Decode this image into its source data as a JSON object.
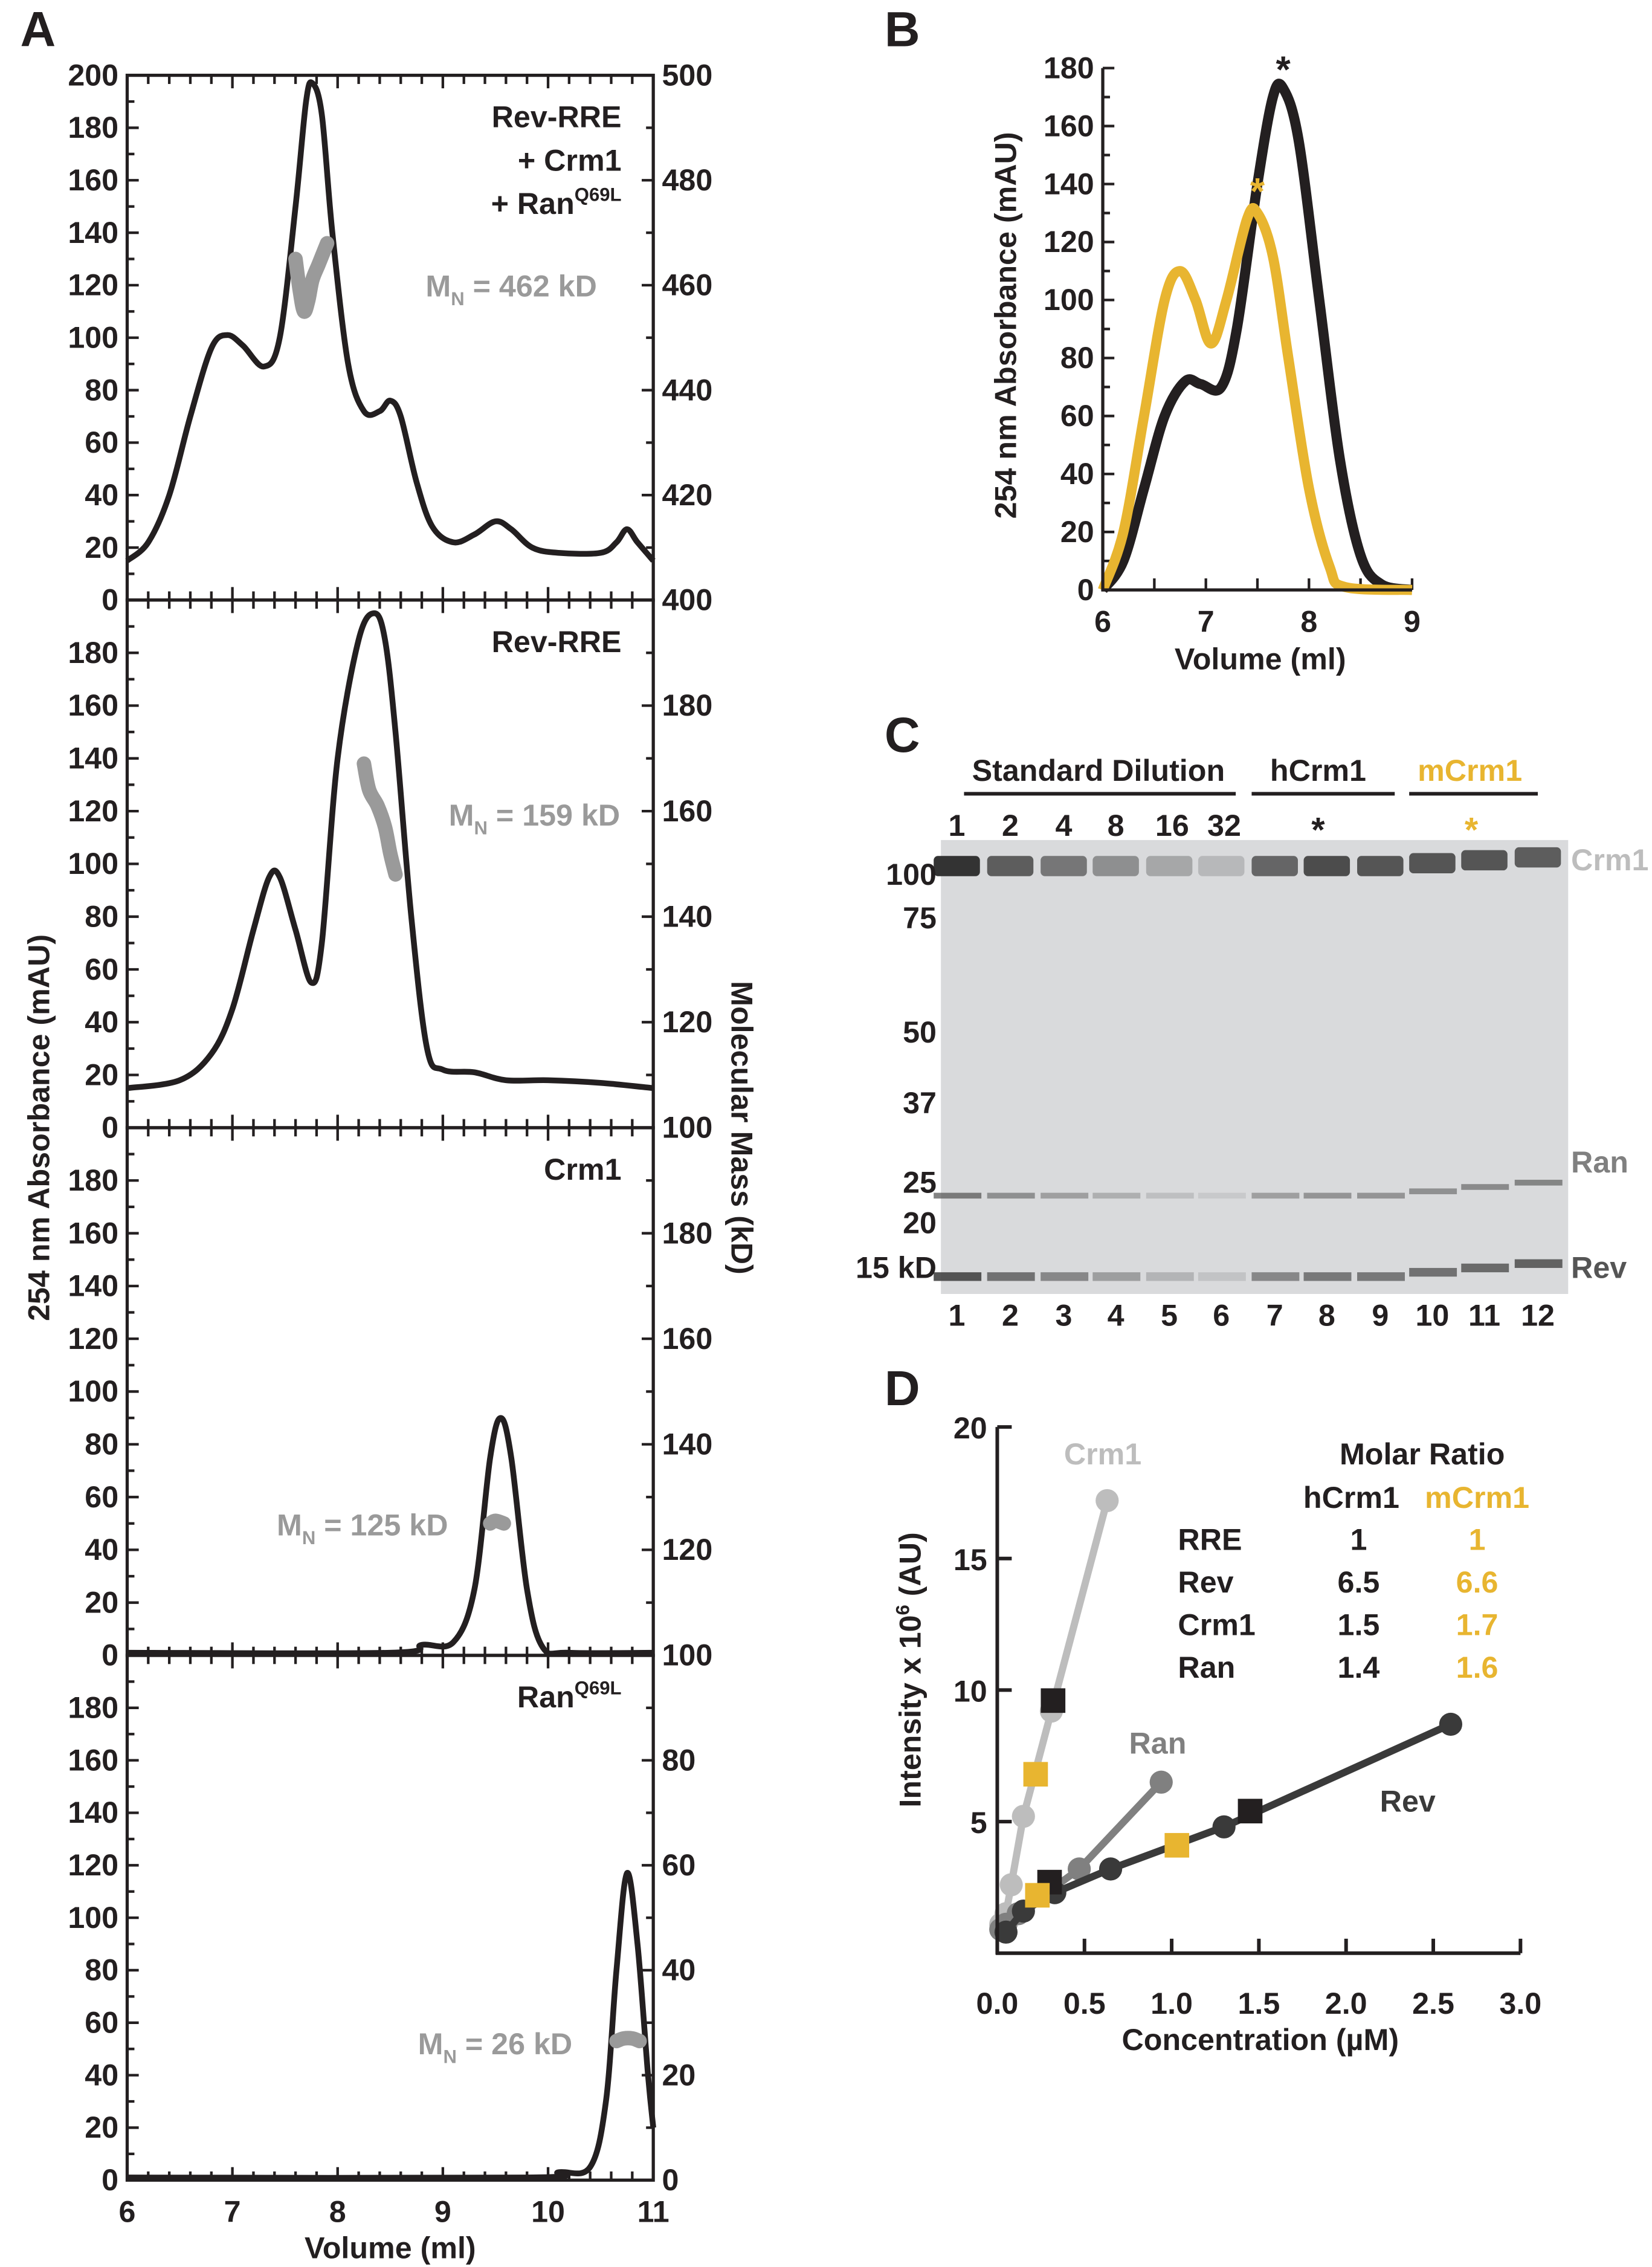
{
  "colors": {
    "black": "#231f20",
    "yellow": "#e8b530",
    "mals": "#9a9a9a",
    "crm1": "#bdbdbd",
    "ran": "#808080",
    "rev": "#3a3a3a",
    "gel": "#d9dadc"
  },
  "panels": {
    "A": "A",
    "B": "B",
    "C": "C",
    "D": "D"
  },
  "chart_data": [
    {
      "id": "A",
      "type": "line",
      "xlabel": "Volume (ml)",
      "ylabel": "254 nm Absorbance (mAU)",
      "y2label": "Molecular Mass (kD)",
      "xlim": [
        6,
        11
      ],
      "xticks": [
        "6",
        "7",
        "8",
        "9",
        "10",
        "11"
      ],
      "subplots": [
        {
          "title_lines": [
            "Rev-RRE",
            "+ Crm1",
            "+ Ran"
          ],
          "title_sup": "Q69L",
          "ylim": [
            0,
            200
          ],
          "y2lim": [
            400,
            500
          ],
          "yticks": [
            "0",
            "20",
            "40",
            "60",
            "80",
            "100",
            "120",
            "140",
            "160",
            "180",
            "200"
          ],
          "y2ticks": [
            "400",
            "420",
            "440",
            "460",
            "480",
            "500"
          ],
          "mn": {
            "prefix": "M",
            "sub": "N",
            "value": " = 462 kD"
          },
          "trace": [
            [
              6,
              15
            ],
            [
              6.2,
              22
            ],
            [
              6.4,
              40
            ],
            [
              6.6,
              70
            ],
            [
              6.8,
              96
            ],
            [
              6.95,
              101
            ],
            [
              7.1,
              97
            ],
            [
              7.3,
              89
            ],
            [
              7.45,
              100
            ],
            [
              7.6,
              150
            ],
            [
              7.7,
              190
            ],
            [
              7.76,
              197
            ],
            [
              7.85,
              185
            ],
            [
              7.95,
              140
            ],
            [
              8.1,
              90
            ],
            [
              8.25,
              72
            ],
            [
              8.4,
              72
            ],
            [
              8.5,
              76
            ],
            [
              8.6,
              70
            ],
            [
              8.75,
              45
            ],
            [
              8.9,
              28
            ],
            [
              9.1,
              22
            ],
            [
              9.3,
              25
            ],
            [
              9.5,
              30
            ],
            [
              9.65,
              27
            ],
            [
              9.85,
              20
            ],
            [
              10.1,
              18
            ],
            [
              10.5,
              18
            ],
            [
              10.65,
              22
            ],
            [
              10.75,
              27
            ],
            [
              10.85,
              22
            ],
            [
              11,
              15
            ]
          ],
          "mass": [
            [
              7.6,
              465
            ],
            [
              7.64,
              459
            ],
            [
              7.68,
              455
            ],
            [
              7.72,
              457
            ],
            [
              7.76,
              461
            ],
            [
              7.82,
              464
            ],
            [
              7.9,
              468
            ]
          ]
        },
        {
          "title_lines": [
            "Rev-RRE"
          ],
          "title_sup": "",
          "ylim": [
            0,
            200
          ],
          "y2lim": [
            100,
            200
          ],
          "yticks": [
            "0",
            "20",
            "40",
            "60",
            "80",
            "100",
            "120",
            "140",
            "160",
            "180"
          ],
          "y2ticks": [
            "100",
            "120",
            "140",
            "160",
            "180"
          ],
          "mn": {
            "prefix": "M",
            "sub": "N",
            "value": " = 159 kD"
          },
          "trace": [
            [
              6,
              15
            ],
            [
              6.5,
              18
            ],
            [
              6.8,
              28
            ],
            [
              7.0,
              45
            ],
            [
              7.2,
              75
            ],
            [
              7.35,
              95
            ],
            [
              7.45,
              95
            ],
            [
              7.6,
              75
            ],
            [
              7.75,
              55
            ],
            [
              7.85,
              70
            ],
            [
              8.0,
              140
            ],
            [
              8.2,
              185
            ],
            [
              8.35,
              195
            ],
            [
              8.45,
              185
            ],
            [
              8.55,
              150
            ],
            [
              8.7,
              80
            ],
            [
              8.85,
              30
            ],
            [
              9.0,
              22
            ],
            [
              9.3,
              21
            ],
            [
              9.6,
              18
            ],
            [
              10,
              18
            ],
            [
              10.5,
              17
            ],
            [
              11,
              15
            ]
          ],
          "mass": [
            [
              8.25,
              169
            ],
            [
              8.3,
              164
            ],
            [
              8.38,
              161
            ],
            [
              8.45,
              157
            ],
            [
              8.5,
              152
            ],
            [
              8.55,
              148
            ]
          ]
        },
        {
          "title_lines": [
            "Crm1"
          ],
          "title_sup": "",
          "ylim": [
            0,
            200
          ],
          "y2lim": [
            100,
            200
          ],
          "yticks": [
            "0",
            "20",
            "40",
            "60",
            "80",
            "100",
            "120",
            "140",
            "160",
            "180"
          ],
          "y2ticks": [
            "100",
            "120",
            "140",
            "160",
            "180"
          ],
          "mn": {
            "prefix": "M",
            "sub": "N",
            "value": " = 125 kD"
          },
          "trace": [
            [
              6,
              1
            ],
            [
              8.5,
              1
            ],
            [
              8.8,
              4
            ],
            [
              9.1,
              5
            ],
            [
              9.3,
              25
            ],
            [
              9.45,
              75
            ],
            [
              9.55,
              90
            ],
            [
              9.65,
              75
            ],
            [
              9.8,
              25
            ],
            [
              9.95,
              3
            ],
            [
              10.2,
              1
            ],
            [
              11,
              1
            ]
          ],
          "mass": [
            [
              9.45,
              125
            ],
            [
              9.5,
              125.5
            ],
            [
              9.58,
              125
            ]
          ]
        },
        {
          "title_lines": [
            "Ran"
          ],
          "title_sup": "Q69L",
          "ylim": [
            0,
            200
          ],
          "y2lim": [
            0,
            100
          ],
          "yticks": [
            "0",
            "20",
            "40",
            "60",
            "80",
            "100",
            "120",
            "140",
            "160",
            "180"
          ],
          "y2ticks": [
            "0",
            "20",
            "40",
            "60",
            "80"
          ],
          "mn": {
            "prefix": "M",
            "sub": "N",
            "value": " = 26 kD"
          },
          "trace": [
            [
              6,
              1
            ],
            [
              9.8,
              1
            ],
            [
              10.1,
              3
            ],
            [
              10.4,
              5
            ],
            [
              10.55,
              30
            ],
            [
              10.65,
              80
            ],
            [
              10.75,
              117
            ],
            [
              10.85,
              90
            ],
            [
              10.95,
              40
            ],
            [
              11,
              20
            ]
          ],
          "mass": [
            [
              10.65,
              26.5
            ],
            [
              10.72,
              27
            ],
            [
              10.8,
              27
            ],
            [
              10.87,
              26.5
            ]
          ]
        }
      ]
    },
    {
      "id": "B",
      "type": "line",
      "xlabel": "Volume (ml)",
      "ylabel": "254 nm Absorbance (mAU)",
      "xlim": [
        6,
        9
      ],
      "ylim": [
        0,
        180
      ],
      "xticks": [
        "6",
        "7",
        "8",
        "9"
      ],
      "yticks": [
        "0",
        "20",
        "40",
        "60",
        "80",
        "100",
        "120",
        "140",
        "160",
        "180"
      ],
      "series": [
        {
          "color": "#231f20",
          "star_x": 7.75,
          "star_y": 172,
          "star": "*",
          "points": [
            [
              6,
              0
            ],
            [
              6.2,
              10
            ],
            [
              6.4,
              35
            ],
            [
              6.6,
              60
            ],
            [
              6.8,
              72
            ],
            [
              6.95,
              71
            ],
            [
              7.15,
              70
            ],
            [
              7.3,
              90
            ],
            [
              7.5,
              140
            ],
            [
              7.65,
              170
            ],
            [
              7.75,
              173
            ],
            [
              7.9,
              155
            ],
            [
              8.1,
              100
            ],
            [
              8.3,
              45
            ],
            [
              8.5,
              12
            ],
            [
              8.7,
              2
            ],
            [
              9,
              0
            ]
          ]
        },
        {
          "color": "#e8b530",
          "star_x": 7.5,
          "star_y": 130,
          "star": "*",
          "points": [
            [
              6,
              0
            ],
            [
              6.2,
              20
            ],
            [
              6.4,
              60
            ],
            [
              6.6,
              100
            ],
            [
              6.75,
              110
            ],
            [
              6.9,
              100
            ],
            [
              7.05,
              85
            ],
            [
              7.2,
              100
            ],
            [
              7.4,
              128
            ],
            [
              7.5,
              130
            ],
            [
              7.65,
              115
            ],
            [
              7.8,
              80
            ],
            [
              8.0,
              35
            ],
            [
              8.2,
              8
            ],
            [
              8.35,
              1
            ],
            [
              9,
              0
            ]
          ]
        }
      ]
    },
    {
      "id": "C",
      "type": "gel",
      "groups": [
        {
          "label": "Standard Dilution",
          "color": "#231f20"
        },
        {
          "label": "hCrm1",
          "color": "#231f20",
          "mark": "*"
        },
        {
          "label": "mCrm1",
          "color": "#e8b530",
          "mark": "*"
        }
      ],
      "dilutions": [
        "1",
        "2",
        "4",
        "8",
        "16",
        "32"
      ],
      "markers": [
        "100",
        "75",
        "50",
        "37",
        "25",
        "20",
        "15 kD"
      ],
      "bands": [
        {
          "label": "Crm1",
          "color": "#bdbdbd"
        },
        {
          "label": "Ran",
          "color": "#808080"
        },
        {
          "label": "Rev",
          "color": "#555555"
        }
      ],
      "lanes": [
        "1",
        "2",
        "3",
        "4",
        "5",
        "6",
        "7",
        "8",
        "9",
        "10",
        "11",
        "12"
      ]
    },
    {
      "id": "D",
      "type": "scatter",
      "xlabel": "Concentration (µM)",
      "ylabel_main": "Intensity x 10",
      "ylabel_sup": "6",
      "ylabel_end": " (AU)",
      "xlim": [
        0,
        3
      ],
      "ylim": [
        0,
        20
      ],
      "xticks": [
        "0.0",
        "0.5",
        "1.0",
        "1.5",
        "2.0",
        "2.5",
        "3.0"
      ],
      "yticks": [
        "5",
        "10",
        "15",
        "20"
      ],
      "series": [
        {
          "name": "Crm1",
          "color": "#bdbdbd",
          "points": [
            [
              0.02,
              1.1
            ],
            [
              0.05,
              1.5
            ],
            [
              0.08,
              2.6
            ],
            [
              0.15,
              5.2
            ],
            [
              0.31,
              9.2
            ],
            [
              0.63,
              17.2
            ]
          ]
        },
        {
          "name": "Ran",
          "color": "#808080",
          "points": [
            [
              0.02,
              0.9
            ],
            [
              0.05,
              1.1
            ],
            [
              0.12,
              1.5
            ],
            [
              0.47,
              3.2
            ],
            [
              0.94,
              6.5
            ]
          ]
        },
        {
          "name": "Rev",
          "color": "#3a3a3a",
          "points": [
            [
              0.05,
              0.8
            ],
            [
              0.15,
              1.6
            ],
            [
              0.33,
              2.3
            ],
            [
              0.65,
              3.2
            ],
            [
              1.3,
              4.8
            ],
            [
              2.6,
              8.7
            ]
          ]
        }
      ],
      "hcrm1_squares": [
        [
          0.32,
          9.6
        ],
        [
          0.3,
          2.7
        ],
        [
          1.45,
          5.4
        ]
      ],
      "mcrm1_squares": [
        [
          0.22,
          6.8
        ],
        [
          0.23,
          2.2
        ],
        [
          1.03,
          4.1
        ]
      ],
      "table": {
        "title": "Molar Ratio",
        "headers": [
          "hCrm1",
          "mCrm1"
        ],
        "rows": [
          {
            "label": "RRE",
            "h": "1",
            "m": "1"
          },
          {
            "label": "Rev",
            "h": "6.5",
            "m": "6.6"
          },
          {
            "label": "Crm1",
            "h": "1.5",
            "m": "1.7"
          },
          {
            "label": "Ran",
            "h": "1.4",
            "m": "1.6"
          }
        ]
      }
    }
  ]
}
